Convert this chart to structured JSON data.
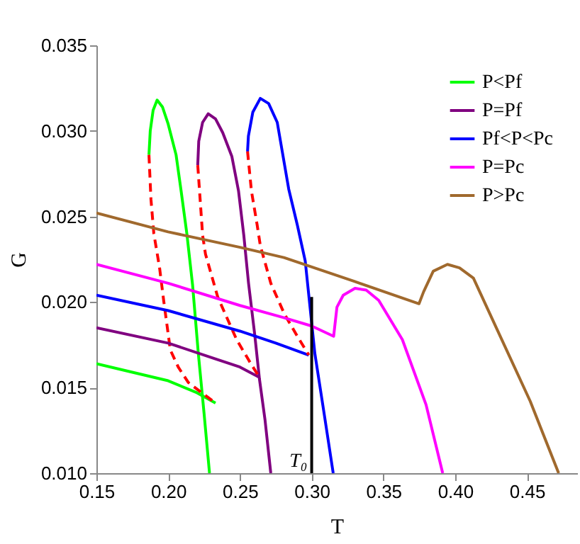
{
  "chart_data": {
    "type": "line",
    "xlabel": "T",
    "ylabel": "G",
    "legend": "top right",
    "xlim": [
      0.15,
      0.485
    ],
    "ylim": [
      0.01,
      0.035
    ],
    "xticks": [
      0.15,
      {
        "value": 0.2,
        "label": "0.20"
      },
      0.25,
      {
        "value": 0.3,
        "label": "0.30"
      },
      0.35,
      {
        "value": 0.4,
        "label": "0.40"
      },
      0.45
    ],
    "yticks": [
      {
        "value": 0.01,
        "label": "0.010"
      },
      0.015,
      {
        "value": 0.02,
        "label": "0.020"
      },
      0.025,
      {
        "value": 0.03,
        "label": "0.030"
      },
      0.035
    ],
    "annotations": [
      {
        "text": "T₀",
        "x": 0.3,
        "y": 0.0107
      }
    ],
    "series": [
      {
        "name": "P<Pf",
        "color": "#00ff00",
        "line_style": "solid",
        "x": [
          0.15,
          0.175,
          0.2,
          0.22,
          0.233
        ],
        "values": [
          0.0164,
          0.0159,
          0.0154,
          0.0147,
          0.0141
        ]
      },
      {
        "color": "#00ff00",
        "line_style": "solid",
        "x": [
          0.1866,
          0.1875,
          0.1895,
          0.1923,
          0.196,
          0.2,
          0.2055,
          0.209,
          0.213,
          0.217,
          0.221,
          0.225,
          0.2288
        ],
        "values": [
          0.0286,
          0.03,
          0.0312,
          0.0318,
          0.0314,
          0.0304,
          0.0286,
          0.0265,
          0.024,
          0.021,
          0.017,
          0.0135,
          0.01
        ]
      },
      {
        "color": "#ff0000",
        "line_style": "dashed",
        "x": [
          0.1866,
          0.188,
          0.19,
          0.194,
          0.197,
          0.2015,
          0.207,
          0.214,
          0.225,
          0.233
        ],
        "values": [
          0.0286,
          0.026,
          0.024,
          0.022,
          0.02,
          0.0172,
          0.0162,
          0.0153,
          0.0146,
          0.0141
        ]
      },
      {
        "name": "P=Pf",
        "color": "#800080",
        "line_style": "solid",
        "x": [
          0.15,
          0.2,
          0.25,
          0.2636
        ],
        "values": [
          0.0185,
          0.0176,
          0.0162,
          0.0156
        ]
      },
      {
        "color": "#800080",
        "line_style": "solid",
        "x": [
          0.2206,
          0.2213,
          0.224,
          0.2279,
          0.233,
          0.238,
          0.2444,
          0.249,
          0.2527,
          0.256,
          0.2603,
          0.2636,
          0.2675,
          0.2715
        ],
        "values": [
          0.028,
          0.0294,
          0.0305,
          0.031,
          0.0307,
          0.0299,
          0.0285,
          0.0265,
          0.0239,
          0.0211,
          0.0181,
          0.0155,
          0.0131,
          0.01
        ]
      },
      {
        "color": "#ff0000",
        "line_style": "dashed",
        "x": [
          0.2206,
          0.224,
          0.226,
          0.2345,
          0.2477,
          0.2576,
          0.2636
        ],
        "values": [
          0.028,
          0.0239,
          0.0228,
          0.0203,
          0.0178,
          0.0164,
          0.0156
        ]
      },
      {
        "name": "Pf<P<Pc",
        "color": "#0000ff",
        "line_style": "solid",
        "x": [
          0.15,
          0.2,
          0.25,
          0.275,
          0.298
        ],
        "values": [
          0.0204,
          0.0195,
          0.0183,
          0.0176,
          0.0169
        ]
      },
      {
        "color": "#0000ff",
        "line_style": "solid",
        "x": [
          0.2553,
          0.2559,
          0.259,
          0.2642,
          0.27,
          0.276,
          0.284,
          0.29,
          0.2955,
          0.3022,
          0.309,
          0.315
        ],
        "values": [
          0.0288,
          0.0297,
          0.0311,
          0.0319,
          0.0316,
          0.0305,
          0.0266,
          0.0245,
          0.0224,
          0.017,
          0.0133,
          0.01
        ]
      },
      {
        "color": "#ff0000",
        "line_style": "dashed",
        "x": [
          0.2553,
          0.258,
          0.262,
          0.2642,
          0.2715,
          0.281,
          0.29,
          0.298
        ],
        "values": [
          0.0288,
          0.0265,
          0.0245,
          0.0233,
          0.0211,
          0.0193,
          0.018,
          0.0169
        ]
      },
      {
        "name": "P=Pc",
        "color": "#ff00ff",
        "line_style": "solid",
        "x": [
          0.15,
          0.2,
          0.25,
          0.28,
          0.3,
          0.3153,
          0.3176,
          0.322,
          0.3302,
          0.338,
          0.3467,
          0.3632,
          0.3797,
          0.3913
        ],
        "values": [
          0.0222,
          0.0211,
          0.0198,
          0.0191,
          0.0186,
          0.018,
          0.0197,
          0.0204,
          0.0208,
          0.0207,
          0.0201,
          0.0178,
          0.014,
          0.01
        ]
      },
      {
        "name": "P>Pc",
        "color": "#a0692d",
        "line_style": "solid",
        "x": [
          0.15,
          0.2,
          0.25,
          0.2807,
          0.33,
          0.3748,
          0.378,
          0.3847,
          0.3946,
          0.403,
          0.4127,
          0.4292,
          0.4523,
          0.4721
        ],
        "values": [
          0.0252,
          0.0241,
          0.0232,
          0.0226,
          0.0212,
          0.0199,
          0.0206,
          0.0218,
          0.0222,
          0.022,
          0.0214,
          0.0184,
          0.0142,
          0.01
        ]
      },
      {
        "color": "#000000",
        "line_style": "solid",
        "x": [
          0.3,
          0.3
        ],
        "values": [
          0.01,
          0.0203
        ]
      }
    ]
  }
}
